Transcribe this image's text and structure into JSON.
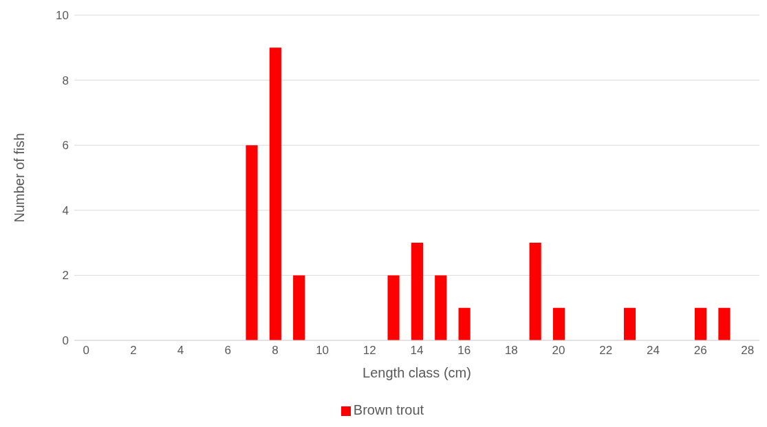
{
  "chart_data": {
    "type": "bar",
    "xlabel": "Length class (cm)",
    "ylabel": "Number of fish",
    "x": [
      0,
      1,
      2,
      3,
      4,
      5,
      6,
      7,
      8,
      9,
      10,
      11,
      12,
      13,
      14,
      15,
      16,
      17,
      18,
      19,
      20,
      21,
      22,
      23,
      24,
      25,
      26,
      27,
      28
    ],
    "series": [
      {
        "name": "Brown trout",
        "color": "#ff0000",
        "values": [
          0,
          0,
          0,
          0,
          0,
          0,
          0,
          6,
          9,
          2,
          0,
          0,
          0,
          2,
          3,
          2,
          1,
          0,
          0,
          3,
          1,
          0,
          0,
          1,
          0,
          0,
          1,
          1,
          0
        ]
      }
    ],
    "xlim": [
      -0.5,
      28.5
    ],
    "xticks": [
      0,
      2,
      4,
      6,
      8,
      10,
      12,
      14,
      16,
      18,
      20,
      22,
      24,
      26,
      28
    ],
    "ylim": [
      0,
      10
    ],
    "yticks": [
      0,
      2,
      4,
      6,
      8,
      10
    ],
    "grid": "y",
    "legend": "bottom"
  }
}
